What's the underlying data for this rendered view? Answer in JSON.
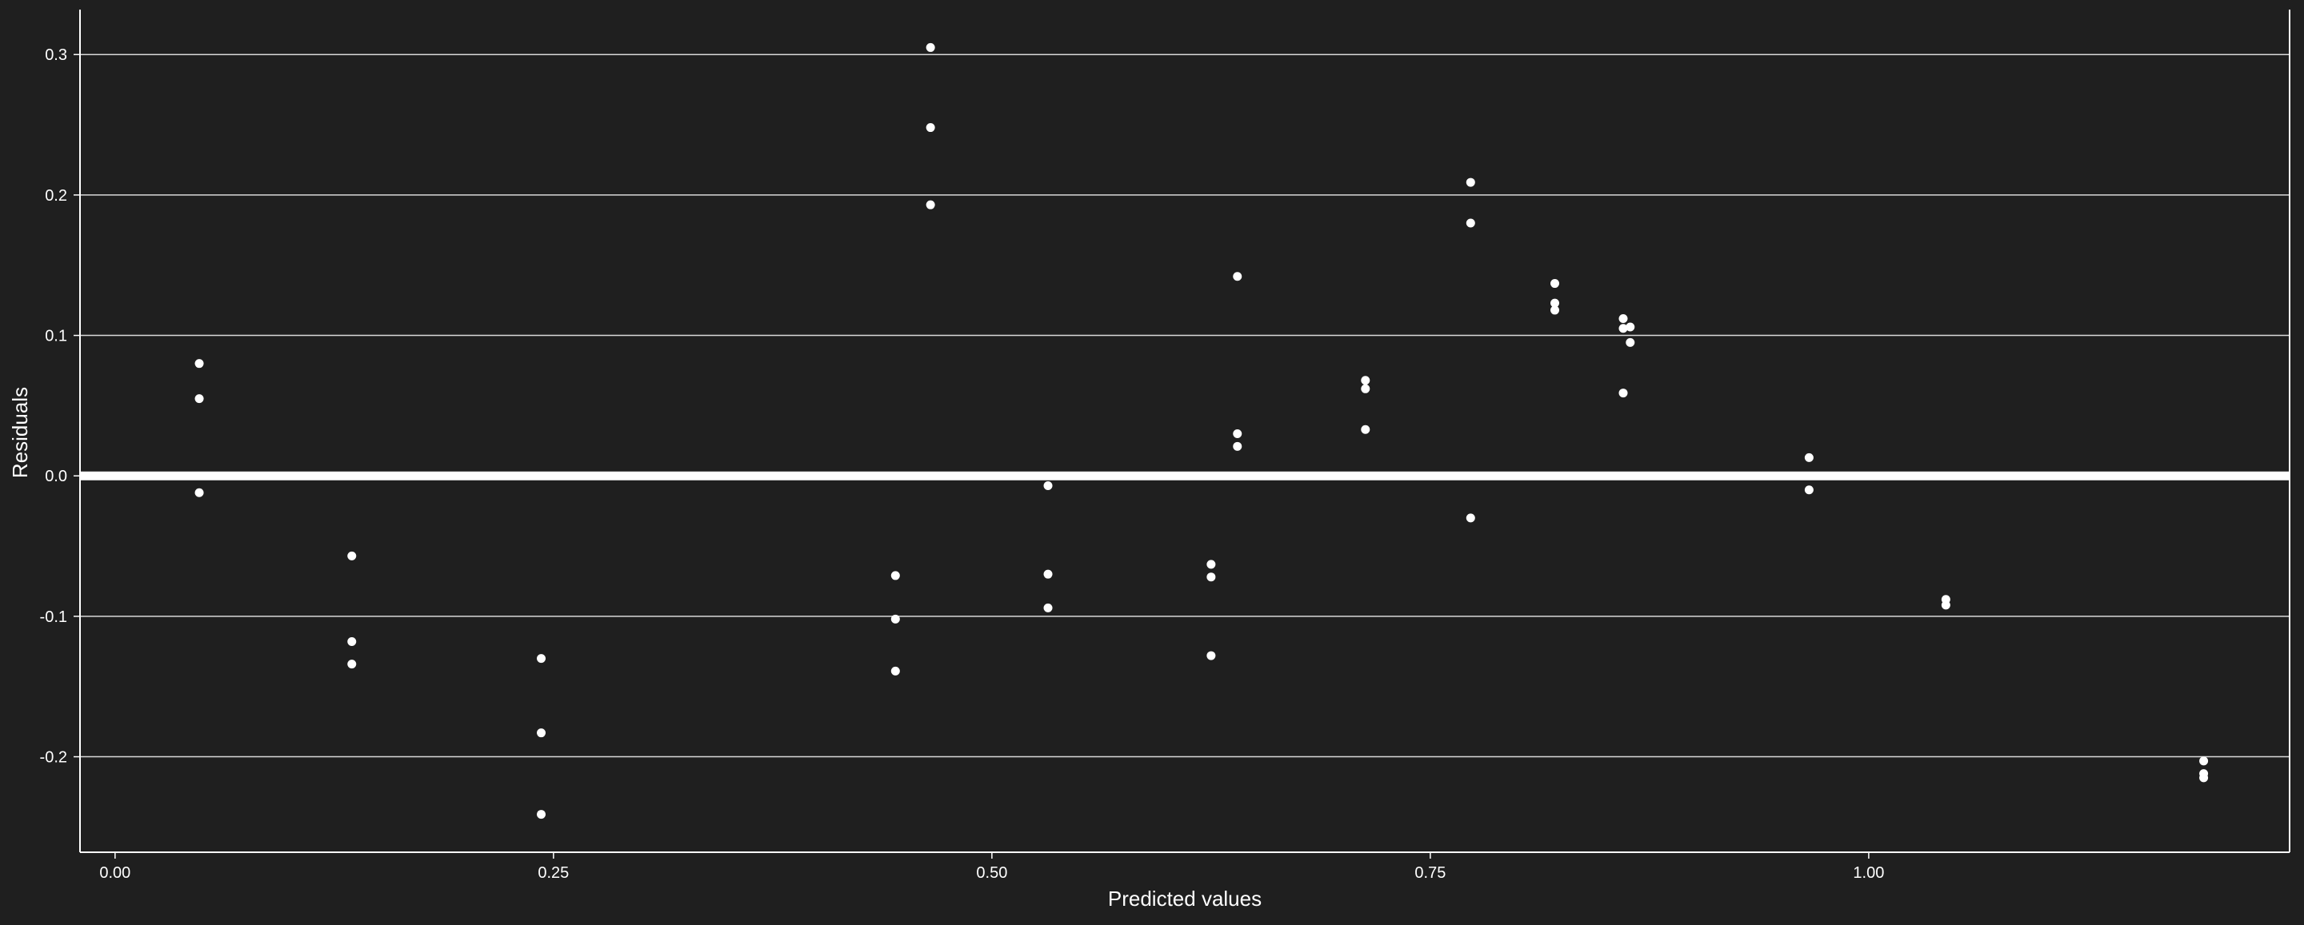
{
  "chart_data": {
    "type": "scatter",
    "title": "",
    "xlabel": "Predicted values",
    "ylabel": "Residuals",
    "xlim": [
      -0.02,
      1.24
    ],
    "ylim": [
      -0.268,
      0.332
    ],
    "x_ticks": [
      0.0,
      0.25,
      0.5,
      0.75,
      1.0
    ],
    "x_tick_labels": [
      "0.00",
      "0.25",
      "0.50",
      "0.75",
      "1.00"
    ],
    "y_ticks": [
      -0.2,
      -0.1,
      0.0,
      0.1,
      0.2,
      0.3
    ],
    "y_tick_labels": [
      "-0.2",
      "-0.1",
      "0.0",
      "0.1",
      "0.2",
      "0.3"
    ],
    "grid": "horizontal",
    "reference_line": {
      "y": 0.0,
      "color": "#ffffff"
    },
    "colors": {
      "background": "#1f1f1f",
      "points": "#ffffff",
      "grid": "#d9d9d9"
    },
    "points": [
      {
        "x": 0.048,
        "y": 0.08
      },
      {
        "x": 0.048,
        "y": 0.055
      },
      {
        "x": 0.048,
        "y": -0.012
      },
      {
        "x": 0.135,
        "y": -0.057
      },
      {
        "x": 0.135,
        "y": -0.118
      },
      {
        "x": 0.135,
        "y": -0.134
      },
      {
        "x": 0.243,
        "y": -0.13
      },
      {
        "x": 0.243,
        "y": -0.183
      },
      {
        "x": 0.243,
        "y": -0.241
      },
      {
        "x": 0.445,
        "y": -0.071
      },
      {
        "x": 0.445,
        "y": -0.102
      },
      {
        "x": 0.445,
        "y": -0.139
      },
      {
        "x": 0.465,
        "y": 0.305
      },
      {
        "x": 0.465,
        "y": 0.248
      },
      {
        "x": 0.465,
        "y": 0.193
      },
      {
        "x": 0.532,
        "y": -0.007
      },
      {
        "x": 0.532,
        "y": -0.07
      },
      {
        "x": 0.532,
        "y": -0.094
      },
      {
        "x": 0.625,
        "y": -0.063
      },
      {
        "x": 0.625,
        "y": -0.072
      },
      {
        "x": 0.625,
        "y": -0.128
      },
      {
        "x": 0.64,
        "y": 0.142
      },
      {
        "x": 0.64,
        "y": 0.03
      },
      {
        "x": 0.64,
        "y": 0.021
      },
      {
        "x": 0.713,
        "y": 0.068
      },
      {
        "x": 0.713,
        "y": 0.062
      },
      {
        "x": 0.713,
        "y": 0.033
      },
      {
        "x": 0.773,
        "y": 0.209
      },
      {
        "x": 0.773,
        "y": 0.18
      },
      {
        "x": 0.773,
        "y": -0.03
      },
      {
        "x": 0.821,
        "y": 0.137
      },
      {
        "x": 0.821,
        "y": 0.123
      },
      {
        "x": 0.821,
        "y": 0.118
      },
      {
        "x": 0.86,
        "y": 0.112
      },
      {
        "x": 0.86,
        "y": 0.105
      },
      {
        "x": 0.864,
        "y": 0.106
      },
      {
        "x": 0.864,
        "y": 0.095
      },
      {
        "x": 0.86,
        "y": 0.059
      },
      {
        "x": 0.966,
        "y": 0.013
      },
      {
        "x": 0.966,
        "y": -0.01
      },
      {
        "x": 1.044,
        "y": -0.088
      },
      {
        "x": 1.044,
        "y": -0.092
      },
      {
        "x": 1.191,
        "y": -0.203
      },
      {
        "x": 1.191,
        "y": -0.212
      },
      {
        "x": 1.191,
        "y": -0.215
      }
    ]
  }
}
